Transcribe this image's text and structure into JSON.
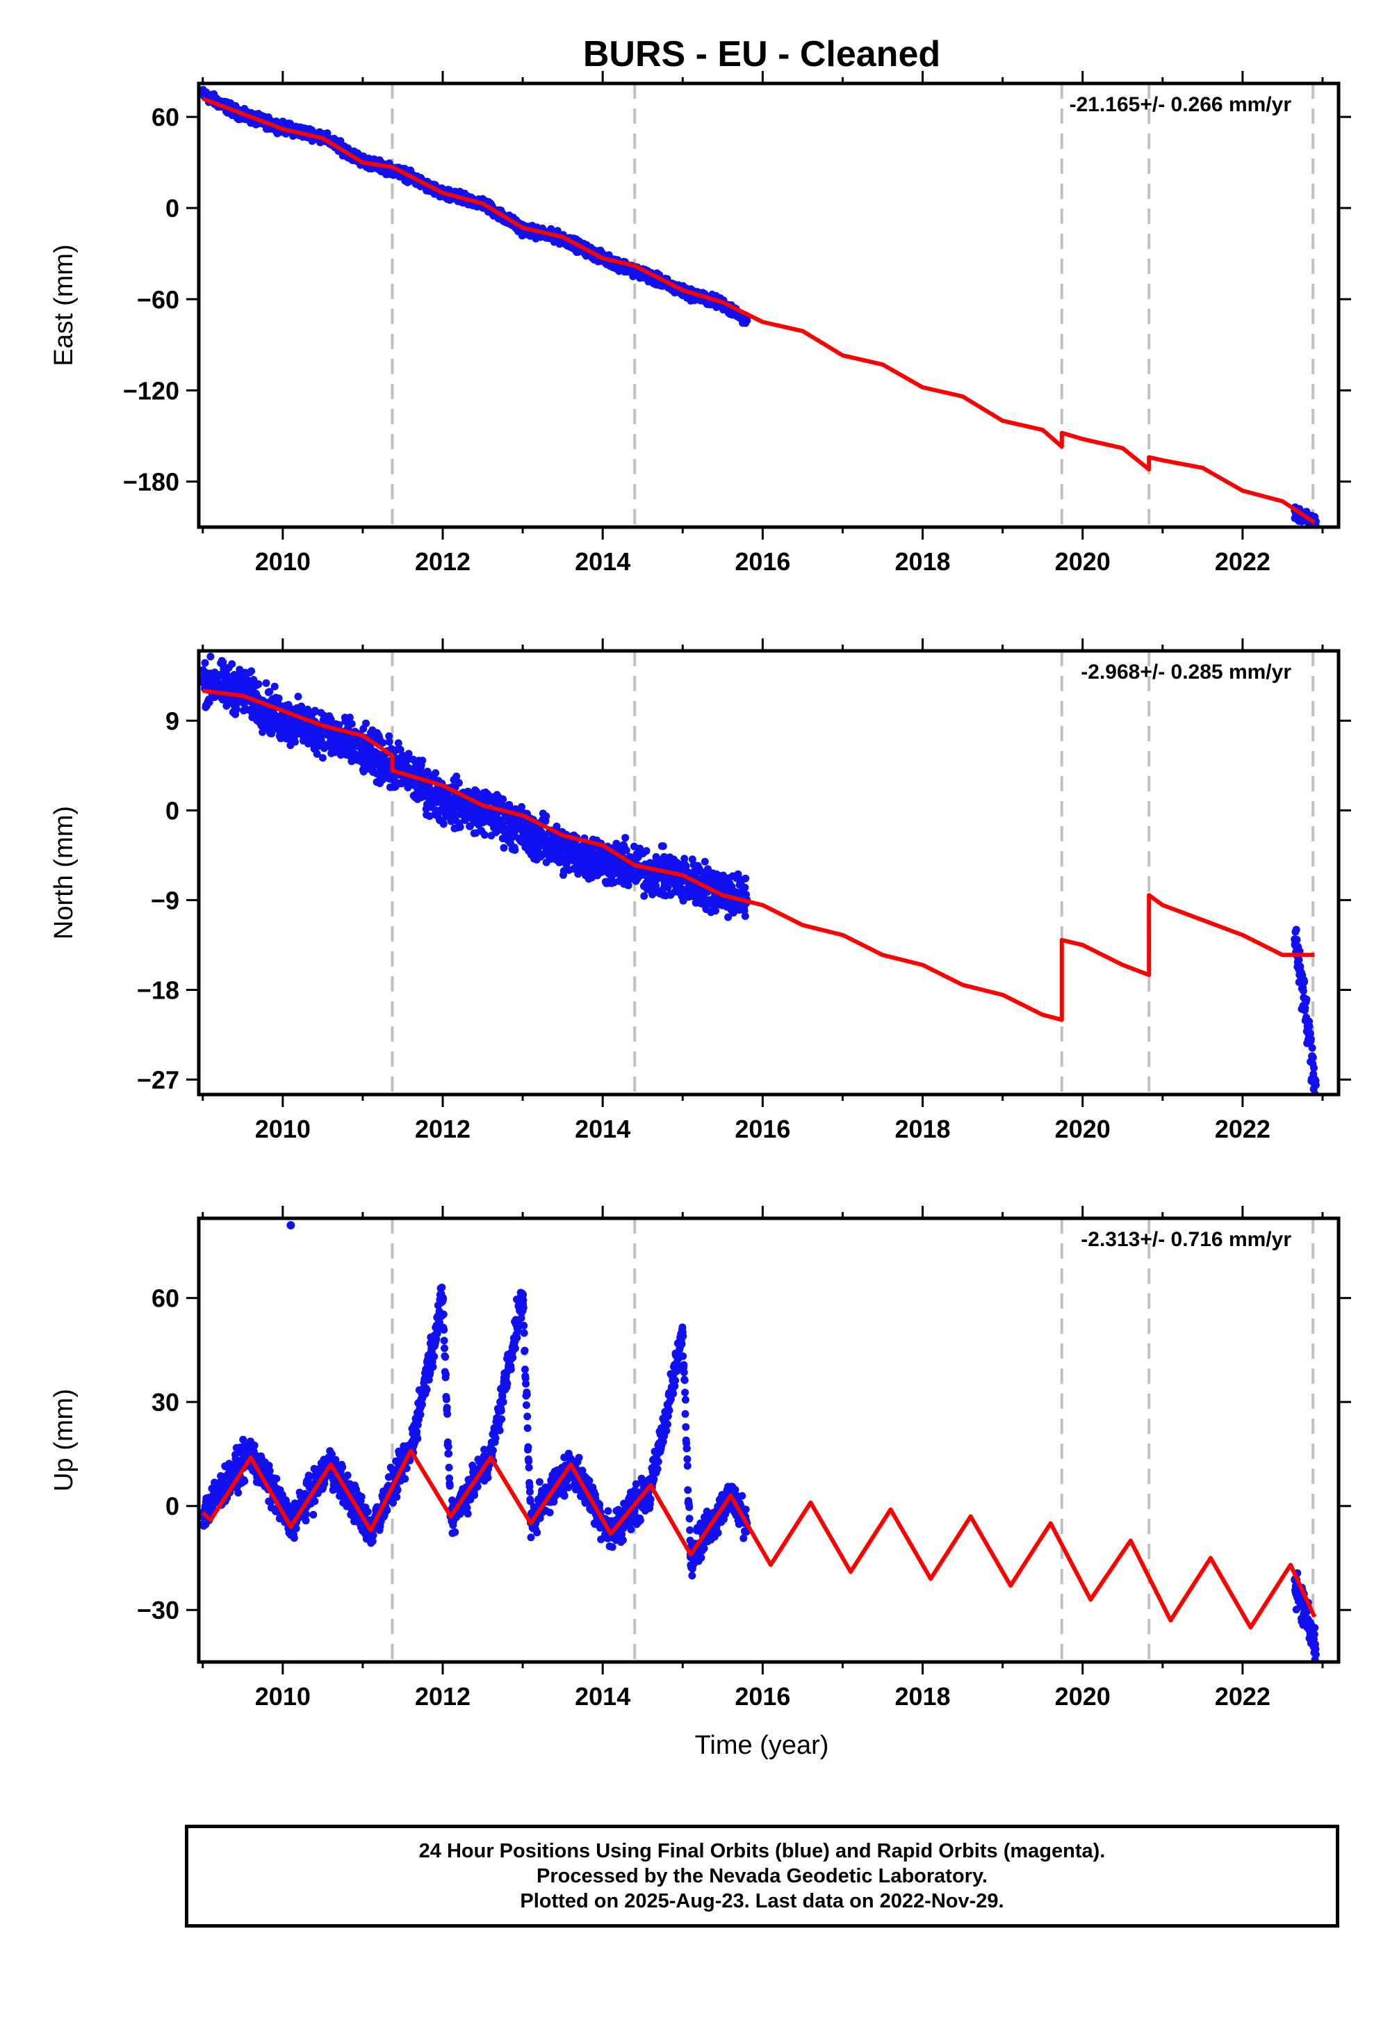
{
  "title": "BURS  - EU - Cleaned",
  "colors": {
    "data": "#1010f0",
    "model": "#ff0000",
    "breaks": "#c0c0c0",
    "frame": "#000000"
  },
  "xlabel": "Time (year)",
  "break_years": [
    2011.37,
    2014.4,
    2019.74,
    2020.83,
    2022.88
  ],
  "chart_data": [
    {
      "type": "scatter",
      "name": "east",
      "ylabel": "East (mm)",
      "xlim": [
        2008.95,
        2023.2
      ],
      "ylim": [
        -210,
        82
      ],
      "xticks": [
        2010,
        2012,
        2014,
        2016,
        2018,
        2020,
        2022
      ],
      "yticks": [
        60,
        0,
        -60,
        -120,
        -180
      ],
      "ytick_labels": [
        "60",
        "0",
        "−60",
        "−120",
        "−180"
      ],
      "rate": "-21.165+/- 0.266 mm/yr",
      "observations": [
        {
          "x": 2009.0,
          "y": 75
        },
        {
          "x": 2009.5,
          "y": 61
        },
        {
          "x": 2010.0,
          "y": 53
        },
        {
          "x": 2010.5,
          "y": 47
        },
        {
          "x": 2011.0,
          "y": 31
        },
        {
          "x": 2011.5,
          "y": 23
        },
        {
          "x": 2012.0,
          "y": 9
        },
        {
          "x": 2012.5,
          "y": 3
        },
        {
          "x": 2013.0,
          "y": -14
        },
        {
          "x": 2013.5,
          "y": -20
        },
        {
          "x": 2014.0,
          "y": -33
        },
        {
          "x": 2014.5,
          "y": -43
        },
        {
          "x": 2015.0,
          "y": -55
        },
        {
          "x": 2015.5,
          "y": -63
        },
        {
          "x": 2015.8,
          "y": -74
        },
        {
          "x": 2022.7,
          "y": -202
        },
        {
          "x": 2022.9,
          "y": -206
        }
      ],
      "model": [
        {
          "x": 2009.0,
          "y": 72
        },
        {
          "x": 2009.5,
          "y": 62
        },
        {
          "x": 2010.0,
          "y": 52
        },
        {
          "x": 2010.5,
          "y": 46
        },
        {
          "x": 2011.0,
          "y": 30
        },
        {
          "x": 2011.37,
          "y": 27
        },
        {
          "x": 2012.0,
          "y": 10
        },
        {
          "x": 2012.5,
          "y": 3
        },
        {
          "x": 2013.0,
          "y": -13
        },
        {
          "x": 2013.5,
          "y": -19
        },
        {
          "x": 2014.0,
          "y": -33
        },
        {
          "x": 2014.4,
          "y": -38
        },
        {
          "x": 2015.0,
          "y": -54
        },
        {
          "x": 2015.5,
          "y": -62
        },
        {
          "x": 2016.0,
          "y": -75
        },
        {
          "x": 2016.5,
          "y": -81
        },
        {
          "x": 2017.0,
          "y": -97
        },
        {
          "x": 2017.5,
          "y": -103
        },
        {
          "x": 2018.0,
          "y": -118
        },
        {
          "x": 2018.5,
          "y": -124
        },
        {
          "x": 2019.0,
          "y": -140
        },
        {
          "x": 2019.5,
          "y": -146
        },
        {
          "x": 2019.74,
          "y": -157
        },
        {
          "x": 2019.74,
          "y": -148
        },
        {
          "x": 2020.0,
          "y": -152
        },
        {
          "x": 2020.5,
          "y": -158
        },
        {
          "x": 2020.83,
          "y": -172
        },
        {
          "x": 2020.83,
          "y": -164
        },
        {
          "x": 2021.0,
          "y": -166
        },
        {
          "x": 2021.5,
          "y": -171
        },
        {
          "x": 2022.0,
          "y": -186
        },
        {
          "x": 2022.5,
          "y": -193
        },
        {
          "x": 2022.9,
          "y": -207
        }
      ]
    },
    {
      "type": "scatter",
      "name": "north",
      "ylabel": "North (mm)",
      "xlim": [
        2008.95,
        2023.2
      ],
      "ylim": [
        -28.5,
        16
      ],
      "xticks": [
        2010,
        2012,
        2014,
        2016,
        2018,
        2020,
        2022
      ],
      "yticks": [
        9,
        0,
        -9,
        -18,
        -27
      ],
      "ytick_labels": [
        "9",
        "0",
        "−9",
        "−18",
        "−27"
      ],
      "rate": "-2.968+/- 0.285 mm/yr",
      "observations": [
        {
          "x": 2009.0,
          "y": 13
        },
        {
          "x": 2009.5,
          "y": 12
        },
        {
          "x": 2010.0,
          "y": 9
        },
        {
          "x": 2010.5,
          "y": 8
        },
        {
          "x": 2011.0,
          "y": 6
        },
        {
          "x": 2011.5,
          "y": 4
        },
        {
          "x": 2012.0,
          "y": 1
        },
        {
          "x": 2012.5,
          "y": 0
        },
        {
          "x": 2013.0,
          "y": -2
        },
        {
          "x": 2013.5,
          "y": -4
        },
        {
          "x": 2014.0,
          "y": -5
        },
        {
          "x": 2014.5,
          "y": -6
        },
        {
          "x": 2015.0,
          "y": -7
        },
        {
          "x": 2015.5,
          "y": -8
        },
        {
          "x": 2015.8,
          "y": -9
        },
        {
          "x": 2022.7,
          "y": -15
        },
        {
          "x": 2022.9,
          "y": -27
        }
      ],
      "model": [
        {
          "x": 2009.0,
          "y": 12
        },
        {
          "x": 2009.5,
          "y": 11.5
        },
        {
          "x": 2010.0,
          "y": 10
        },
        {
          "x": 2010.5,
          "y": 8.5
        },
        {
          "x": 2011.0,
          "y": 7.5
        },
        {
          "x": 2011.37,
          "y": 5.5
        },
        {
          "x": 2011.37,
          "y": 4
        },
        {
          "x": 2012.0,
          "y": 2.5
        },
        {
          "x": 2012.5,
          "y": 0.5
        },
        {
          "x": 2013.0,
          "y": -0.5
        },
        {
          "x": 2013.5,
          "y": -2.5
        },
        {
          "x": 2014.0,
          "y": -3.5
        },
        {
          "x": 2014.4,
          "y": -5.5
        },
        {
          "x": 2015.0,
          "y": -6.5
        },
        {
          "x": 2015.5,
          "y": -8.5
        },
        {
          "x": 2016.0,
          "y": -9.5
        },
        {
          "x": 2016.5,
          "y": -11.5
        },
        {
          "x": 2017.0,
          "y": -12.5
        },
        {
          "x": 2017.5,
          "y": -14.5
        },
        {
          "x": 2018.0,
          "y": -15.5
        },
        {
          "x": 2018.5,
          "y": -17.5
        },
        {
          "x": 2019.0,
          "y": -18.5
        },
        {
          "x": 2019.5,
          "y": -20.5
        },
        {
          "x": 2019.74,
          "y": -21
        },
        {
          "x": 2019.74,
          "y": -13
        },
        {
          "x": 2020.0,
          "y": -13.5
        },
        {
          "x": 2020.5,
          "y": -15.5
        },
        {
          "x": 2020.83,
          "y": -16.5
        },
        {
          "x": 2020.83,
          "y": -8.5
        },
        {
          "x": 2021.0,
          "y": -9.5
        },
        {
          "x": 2021.5,
          "y": -11
        },
        {
          "x": 2022.0,
          "y": -12.5
        },
        {
          "x": 2022.5,
          "y": -14.5
        },
        {
          "x": 2022.9,
          "y": -14.5
        }
      ]
    },
    {
      "type": "scatter",
      "name": "up",
      "ylabel": "Up (mm)",
      "xlim": [
        2008.95,
        2023.2
      ],
      "ylim": [
        -45,
        83
      ],
      "xticks": [
        2010,
        2012,
        2014,
        2016,
        2018,
        2020,
        2022
      ],
      "yticks": [
        60,
        30,
        0,
        -30
      ],
      "ytick_labels": [
        "60",
        "30",
        "0",
        "−30"
      ],
      "rate": "-2.313+/- 0.716 mm/yr",
      "observations": [
        {
          "x": 2009.0,
          "y": -2
        },
        {
          "x": 2009.6,
          "y": 15
        },
        {
          "x": 2010.1,
          "y": -5
        },
        {
          "x": 2010.6,
          "y": 12
        },
        {
          "x": 2011.1,
          "y": -7
        },
        {
          "x": 2011.6,
          "y": 16
        },
        {
          "x": 2012.1,
          "y": -3
        },
        {
          "x": 2012.6,
          "y": 14
        },
        {
          "x": 2013.1,
          "y": -4
        },
        {
          "x": 2013.6,
          "y": 12
        },
        {
          "x": 2014.1,
          "y": -8
        },
        {
          "x": 2014.6,
          "y": 5
        },
        {
          "x": 2015.1,
          "y": -14
        },
        {
          "x": 2015.6,
          "y": 3
        },
        {
          "x": 2015.8,
          "y": -5
        },
        {
          "x": 2010.1,
          "y": 81
        },
        {
          "x": 2012.0,
          "y": 60
        },
        {
          "x": 2013.0,
          "y": 61
        },
        {
          "x": 2015.0,
          "y": 49
        },
        {
          "x": 2022.7,
          "y": -25
        },
        {
          "x": 2022.9,
          "y": -40
        }
      ],
      "model": [
        {
          "x": 2009.0,
          "y": -2
        },
        {
          "x": 2009.1,
          "y": -4
        },
        {
          "x": 2009.6,
          "y": 14
        },
        {
          "x": 2010.1,
          "y": -6
        },
        {
          "x": 2010.6,
          "y": 12
        },
        {
          "x": 2011.1,
          "y": -7
        },
        {
          "x": 2011.6,
          "y": 16
        },
        {
          "x": 2012.1,
          "y": -3
        },
        {
          "x": 2012.6,
          "y": 14
        },
        {
          "x": 2013.1,
          "y": -5
        },
        {
          "x": 2013.6,
          "y": 12
        },
        {
          "x": 2014.1,
          "y": -8
        },
        {
          "x": 2014.6,
          "y": 6
        },
        {
          "x": 2015.1,
          "y": -14
        },
        {
          "x": 2015.6,
          "y": 3
        },
        {
          "x": 2016.1,
          "y": -17
        },
        {
          "x": 2016.6,
          "y": 1
        },
        {
          "x": 2017.1,
          "y": -19
        },
        {
          "x": 2017.6,
          "y": -1
        },
        {
          "x": 2018.1,
          "y": -21
        },
        {
          "x": 2018.6,
          "y": -3
        },
        {
          "x": 2019.1,
          "y": -23
        },
        {
          "x": 2019.6,
          "y": -5
        },
        {
          "x": 2020.1,
          "y": -27
        },
        {
          "x": 2020.6,
          "y": -10
        },
        {
          "x": 2021.1,
          "y": -33
        },
        {
          "x": 2021.6,
          "y": -15
        },
        {
          "x": 2022.1,
          "y": -35
        },
        {
          "x": 2022.6,
          "y": -17
        },
        {
          "x": 2022.9,
          "y": -32
        }
      ]
    }
  ],
  "footer": {
    "line1": "24 Hour Positions Using Final Orbits (blue) and Rapid Orbits (magenta).",
    "line2": "Processed by the Nevada Geodetic Laboratory.",
    "line3": "Plotted on 2025-Aug-23. Last data on 2022-Nov-29."
  }
}
